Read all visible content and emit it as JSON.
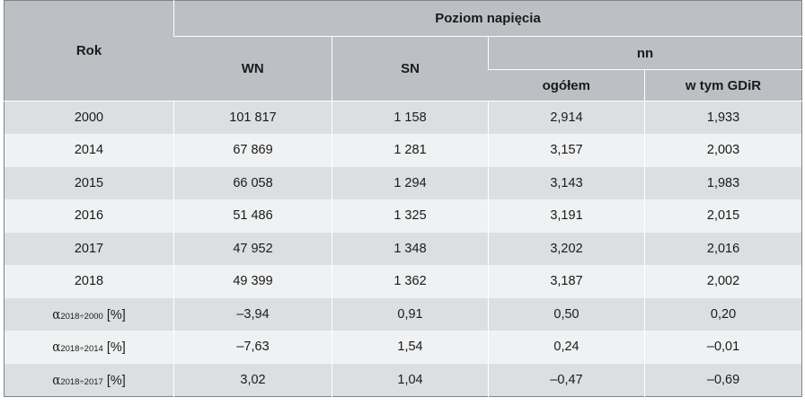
{
  "header": {
    "rok": "Rok",
    "poziom": "Poziom napięcia",
    "wn": "WN",
    "sn": "SN",
    "nn": "nn",
    "ogolem": "ogółem",
    "gdir": "w tym GDiR"
  },
  "rows": [
    {
      "rok": "2000",
      "wn": "101 817",
      "sn": "1 158",
      "ogolem": "2,914",
      "gdir": "1,933"
    },
    {
      "rok": "2014",
      "wn": "67 869",
      "sn": "1 281",
      "ogolem": "3,157",
      "gdir": "2,003"
    },
    {
      "rok": "2015",
      "wn": "66 058",
      "sn": "1 294",
      "ogolem": "3,143",
      "gdir": "1,983"
    },
    {
      "rok": "2016",
      "wn": "51 486",
      "sn": "1 325",
      "ogolem": "3,191",
      "gdir": "2,015"
    },
    {
      "rok": "2017",
      "wn": "47 952",
      "sn": "1 348",
      "ogolem": "3,202",
      "gdir": "2,016"
    },
    {
      "rok": "2018",
      "wn": "49 399",
      "sn": "1 362",
      "ogolem": "3,187",
      "gdir": "2,002"
    }
  ],
  "alpha_rows": [
    {
      "symbol": "α",
      "sub": "2018÷2000",
      "unit": " [%]",
      "wn": "–3,94",
      "sn": "0,91",
      "ogolem": "0,50",
      "gdir": "0,20"
    },
    {
      "symbol": "α",
      "sub": "2018÷2014",
      "unit": " [%]",
      "wn": "–7,63",
      "sn": "1,54",
      "ogolem": "0,24",
      "gdir": "–0,01"
    },
    {
      "symbol": "α",
      "sub": "2018÷2017",
      "unit": " [%]",
      "wn": "3,02",
      "sn": "1,04",
      "ogolem": "–0,47",
      "gdir": "–0,69"
    }
  ]
}
